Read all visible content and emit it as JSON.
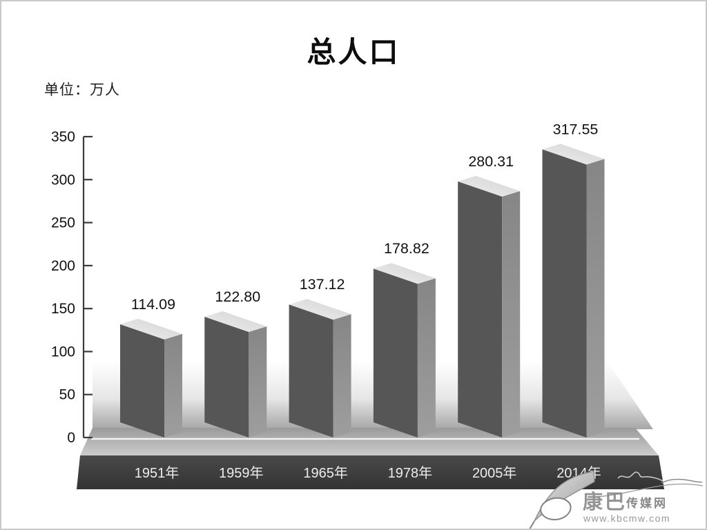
{
  "page": {
    "title": "总人口",
    "unit_label": "单位：万人"
  },
  "chart_data": {
    "type": "bar",
    "style": "3d-grayscale-boxes",
    "title": "总人口",
    "unit": "万人",
    "categories": [
      "1951年",
      "1959年",
      "1965年",
      "1978年",
      "2005年",
      "2014年"
    ],
    "values": [
      114.09,
      122.8,
      137.12,
      178.82,
      280.31,
      317.55
    ],
    "value_labels": [
      "114.09",
      "122.80",
      "137.12",
      "178.82",
      "280.31",
      "317.55"
    ],
    "xlabel": "",
    "ylabel": "万人",
    "ylim": [
      0,
      350
    ],
    "yticks": [
      0,
      50,
      100,
      150,
      200,
      250,
      300,
      350
    ],
    "grid": false,
    "legend_position": "none"
  },
  "watermark": {
    "brand_main": "康巴",
    "brand_suffix": "传媒网",
    "url": "www.kbcmw.com"
  },
  "colors": {
    "bar_front": "#565656",
    "bar_side": "#919191",
    "bar_top": "#e2e2e2",
    "platform_front": "#3d3d3d",
    "axis": "#3a3a3a",
    "tick_label": "#111111",
    "value_label": "#111111",
    "category_label": "#ededed",
    "zero_line": "#f2f2f2",
    "watermark_gray": "#8b8b8b"
  }
}
